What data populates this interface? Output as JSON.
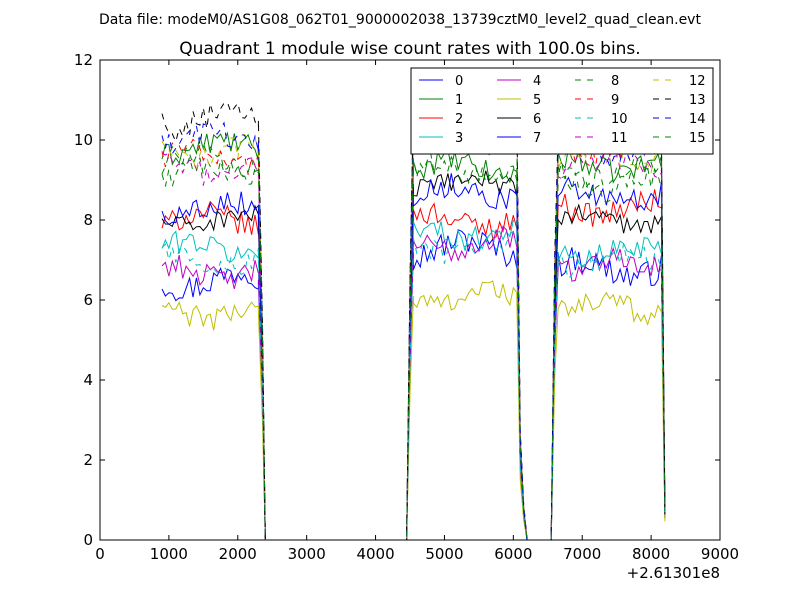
{
  "figure": {
    "suptitle": "Data file: modeM0/AS1G08_062T01_9000002038_13739cztM0_level2_quad_clean.evt"
  },
  "chart_data": {
    "type": "line",
    "title": "Quadrant 1 module wise count rates with 100.0s bins.",
    "xlabel": "",
    "ylabel": "",
    "x_offset_label": "+2.61301e8",
    "xlim": [
      0,
      9000
    ],
    "ylim": [
      0,
      12
    ],
    "xticks": [
      0,
      1000,
      2000,
      3000,
      4000,
      5000,
      6000,
      7000,
      8000,
      9000
    ],
    "yticks": [
      0,
      2,
      4,
      6,
      8,
      10,
      12
    ],
    "x_tick_labels": [
      "0",
      "1000",
      "2000",
      "3000",
      "4000",
      "5000",
      "6000",
      "7000",
      "8000",
      "9000"
    ],
    "y_tick_labels": [
      "0",
      "2",
      "4",
      "6",
      "8",
      "10",
      "12"
    ],
    "legend_position": "top-right",
    "legend_columns": 4,
    "segments": [
      {
        "start": 900,
        "end": 2300
      },
      {
        "start": 4550,
        "end": 6050
      },
      {
        "start": 6650,
        "end": 8150
      }
    ],
    "edges": [
      {
        "x": [
          2300,
          2360,
          2400
        ],
        "frac": [
          1.0,
          0.5,
          0.0
        ]
      },
      {
        "x": [
          4450,
          4500,
          4550
        ],
        "frac": [
          0.0,
          0.6,
          1.0
        ]
      },
      {
        "x": [
          6050,
          6100,
          6150,
          6200
        ],
        "frac": [
          1.0,
          0.25,
          0.08,
          0.0
        ]
      },
      {
        "x": [
          6550,
          6600,
          6650
        ],
        "frac": [
          0.0,
          0.7,
          1.0
        ]
      },
      {
        "x": [
          8150,
          8200
        ],
        "frac": [
          1.0,
          0.08
        ]
      }
    ],
    "gaps": [
      {
        "x": [
          2400,
          4450
        ]
      },
      {
        "x": [
          6200,
          6550
        ]
      }
    ],
    "series": [
      {
        "name": "0",
        "color": "#0000ff",
        "dash": "solid",
        "levels": [
          6.5,
          7.3,
          6.8
        ],
        "amplitude": 0.35
      },
      {
        "name": "1",
        "color": "#008000",
        "dash": "solid",
        "levels": [
          9.8,
          9.3,
          9.4
        ],
        "amplitude": 0.3
      },
      {
        "name": "2",
        "color": "#ff0000",
        "dash": "solid",
        "levels": [
          8.0,
          8.0,
          8.3
        ],
        "amplitude": 0.3
      },
      {
        "name": "3",
        "color": "#00bfbf",
        "dash": "solid",
        "levels": [
          7.3,
          7.7,
          7.2
        ],
        "amplitude": 0.3
      },
      {
        "name": "4",
        "color": "#bf00bf",
        "dash": "solid",
        "levels": [
          6.7,
          7.4,
          6.9
        ],
        "amplitude": 0.3
      },
      {
        "name": "5",
        "color": "#bfbf00",
        "dash": "solid",
        "levels": [
          5.7,
          6.1,
          5.8
        ],
        "amplitude": 0.3
      },
      {
        "name": "6",
        "color": "#000000",
        "dash": "solid",
        "levels": [
          8.0,
          8.9,
          8.0
        ],
        "amplitude": 0.25
      },
      {
        "name": "7",
        "color": "#0000ff",
        "dash": "solid",
        "levels": [
          8.3,
          8.7,
          8.6
        ],
        "amplitude": 0.3
      },
      {
        "name": "8",
        "color": "#008000",
        "dash": "dashed",
        "levels": [
          9.2,
          9.2,
          8.9
        ],
        "amplitude": 0.3
      },
      {
        "name": "9",
        "color": "#ff0000",
        "dash": "dashed",
        "levels": [
          9.6,
          10.4,
          9.8
        ],
        "amplitude": 0.3
      },
      {
        "name": "10",
        "color": "#00bfbf",
        "dash": "dashed",
        "levels": [
          7.0,
          7.3,
          7.0
        ],
        "amplitude": 0.3
      },
      {
        "name": "11",
        "color": "#bf00bf",
        "dash": "dashed",
        "levels": [
          9.3,
          10.3,
          9.4
        ],
        "amplitude": 0.3
      },
      {
        "name": "12",
        "color": "#bfbf00",
        "dash": "dashed",
        "levels": [
          9.7,
          10.5,
          9.6
        ],
        "amplitude": 0.3
      },
      {
        "name": "13",
        "color": "#000000",
        "dash": "dashed",
        "levels": [
          10.5,
          10.9,
          10.2
        ],
        "amplitude": 0.35
      },
      {
        "name": "14",
        "color": "#0000ff",
        "dash": "dashed",
        "levels": [
          10.0,
          10.8,
          9.8
        ],
        "amplitude": 0.3
      },
      {
        "name": "15",
        "color": "#008000",
        "dash": "dashed",
        "levels": [
          9.5,
          10.0,
          9.2
        ],
        "amplitude": 0.3
      }
    ]
  }
}
